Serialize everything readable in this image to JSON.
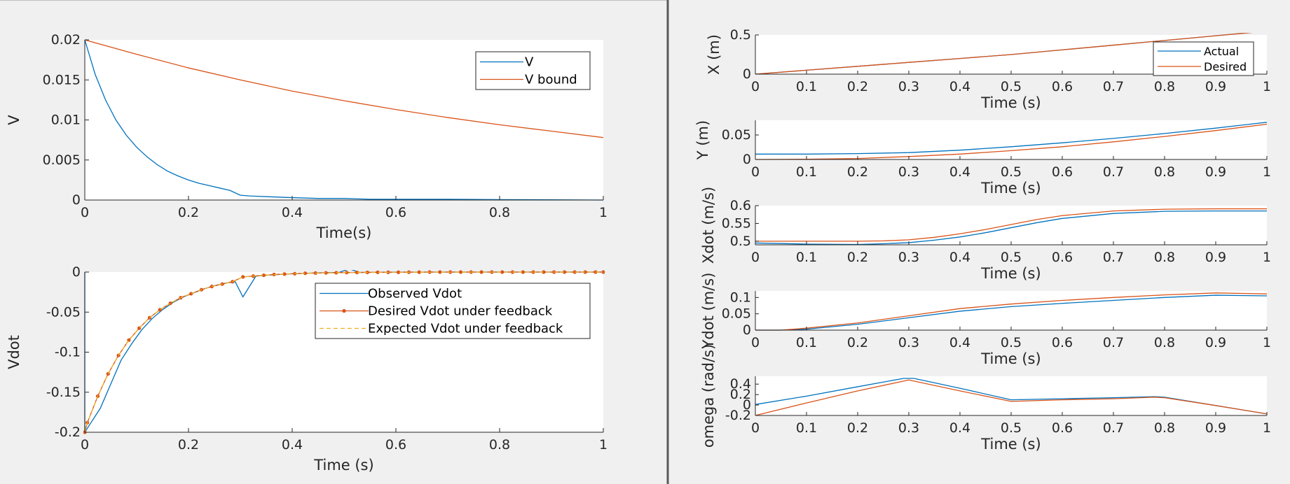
{
  "colors": {
    "blue": "#0072bd",
    "orange": "#d95319",
    "yellow": "#edb120",
    "plot_bg": "#ffffff",
    "figure_bg": "#f0f0f0",
    "axis": "#262626",
    "divider": "#5a5a5a"
  },
  "chart_data": [
    {
      "id": "v",
      "type": "line",
      "xlabel": "Time(s)",
      "ylabel": "V",
      "xlim": [
        0,
        1
      ],
      "ylim": [
        0,
        0.02
      ],
      "xticks": [
        0,
        0.2,
        0.4,
        0.6,
        0.8,
        1
      ],
      "xticklabels": [
        "0",
        "0.2",
        "0.4",
        "0.6",
        "0.8",
        "1"
      ],
      "yticks": [
        0,
        0.005,
        0.01,
        0.015,
        0.02
      ],
      "yticklabels": [
        "0",
        "0.005",
        "0.01",
        "0.015",
        "0.02"
      ],
      "legend_position": "top-right",
      "series": [
        {
          "name": "V",
          "color": "#0072bd",
          "marker": "none",
          "style": "solid",
          "x": [
            0,
            0.02,
            0.04,
            0.06,
            0.08,
            0.1,
            0.12,
            0.14,
            0.16,
            0.18,
            0.2,
            0.22,
            0.24,
            0.26,
            0.28,
            0.3,
            0.32,
            0.36,
            0.4,
            0.45,
            0.5,
            0.55,
            0.6,
            0.7,
            0.8,
            0.9,
            1.0
          ],
          "y": [
            0.02,
            0.0157,
            0.0125,
            0.01,
            0.0081,
            0.0066,
            0.0054,
            0.0044,
            0.0036,
            0.003,
            0.0025,
            0.0021,
            0.0018,
            0.0015,
            0.0012,
            0.0006,
            0.0005,
            0.0004,
            0.0003,
            0.0002,
            0.0002,
            0.0001,
            0.0001,
            0.0001,
            5e-05,
            3e-05,
            0.0
          ]
        },
        {
          "name": "V bound",
          "color": "#d95319",
          "marker": "none",
          "style": "solid",
          "x": [
            0,
            0.1,
            0.2,
            0.3,
            0.4,
            0.5,
            0.6,
            0.7,
            0.8,
            0.9,
            1.0
          ],
          "y": [
            0.02,
            0.0182,
            0.0165,
            0.015,
            0.0136,
            0.0124,
            0.0113,
            0.0103,
            0.0094,
            0.0086,
            0.0078
          ]
        }
      ]
    },
    {
      "id": "vdot",
      "type": "line",
      "xlabel": "Time (s)",
      "ylabel": "Vdot",
      "xlim": [
        0,
        1
      ],
      "ylim": [
        -0.2,
        0
      ],
      "xticks": [
        0,
        0.2,
        0.4,
        0.6,
        0.8,
        1
      ],
      "xticklabels": [
        "0",
        "0.2",
        "0.4",
        "0.6",
        "0.8",
        "1"
      ],
      "yticks": [
        -0.2,
        -0.15,
        -0.1,
        -0.05,
        0
      ],
      "yticklabels": [
        "-0.2",
        "-0.15",
        "-0.1",
        "-0.05",
        "0"
      ],
      "legend_position": "top-right",
      "series": [
        {
          "name": "Observed Vdot",
          "color": "#0072bd",
          "marker": "none",
          "style": "solid",
          "x": [
            0,
            0.0,
            0.01,
            0.03,
            0.05,
            0.07,
            0.09,
            0.11,
            0.13,
            0.15,
            0.17,
            0.19,
            0.21,
            0.23,
            0.25,
            0.27,
            0.29,
            0.305,
            0.33,
            0.35,
            0.4,
            0.45,
            0.49,
            0.51,
            0.53,
            0.6,
            0.7,
            0.8,
            0.9,
            1.0
          ],
          "y": [
            0.0,
            -0.2,
            -0.19,
            -0.17,
            -0.14,
            -0.11,
            -0.09,
            -0.072,
            -0.058,
            -0.047,
            -0.038,
            -0.031,
            -0.026,
            -0.021,
            -0.017,
            -0.014,
            -0.012,
            -0.031,
            -0.005,
            -0.004,
            -0.002,
            -0.001,
            -0.0005,
            0.004,
            -0.0005,
            0.0,
            0.0,
            0.0,
            0.0,
            0.0
          ]
        },
        {
          "name": "Desired Vdot under feedback",
          "color": "#d95319",
          "marker": "dot",
          "style": "solid",
          "x": [
            0,
            0.005,
            0.025,
            0.045,
            0.065,
            0.085,
            0.105,
            0.125,
            0.145,
            0.165,
            0.185,
            0.205,
            0.225,
            0.245,
            0.265,
            0.285,
            0.305,
            0.325,
            0.345,
            0.365,
            0.385,
            0.405,
            0.425,
            0.445,
            0.465,
            0.485,
            0.505,
            0.525,
            0.545,
            0.565,
            0.585,
            0.605,
            0.625,
            0.645,
            0.665,
            0.685,
            0.705,
            0.725,
            0.745,
            0.765,
            0.785,
            0.805,
            0.825,
            0.845,
            0.865,
            0.885,
            0.905,
            0.925,
            0.945,
            0.965,
            0.985,
            1.0
          ],
          "y": [
            -0.2,
            -0.188,
            -0.155,
            -0.127,
            -0.104,
            -0.085,
            -0.07,
            -0.057,
            -0.047,
            -0.039,
            -0.032,
            -0.027,
            -0.022,
            -0.018,
            -0.015,
            -0.012,
            -0.006,
            -0.005,
            -0.004,
            -0.003,
            -0.0025,
            -0.002,
            -0.0015,
            -0.0012,
            -0.001,
            -0.0008,
            -0.0006,
            -0.0005,
            -0.0004,
            -0.0003,
            -0.0002,
            -0.0002,
            -0.0001,
            -0.0001,
            0.0,
            0.0,
            0.0,
            0.0,
            0.0,
            0.0,
            0.0,
            0.0,
            0.0,
            0.0,
            0.0,
            0.0,
            0.0,
            0.0,
            0.0,
            0.0,
            0.0,
            0.0
          ]
        },
        {
          "name": "Expected Vdot under feedback",
          "color": "#edb120",
          "marker": "none",
          "style": "dashed",
          "x": [
            0,
            0.005,
            0.025,
            0.045,
            0.065,
            0.085,
            0.105,
            0.125,
            0.145,
            0.165,
            0.185,
            0.205,
            0.225,
            0.245,
            0.265,
            0.285,
            0.305,
            0.345,
            0.4,
            0.5,
            0.6,
            0.8,
            1.0
          ],
          "y": [
            -0.2,
            -0.188,
            -0.155,
            -0.127,
            -0.104,
            -0.085,
            -0.07,
            -0.057,
            -0.047,
            -0.039,
            -0.032,
            -0.027,
            -0.022,
            -0.018,
            -0.015,
            -0.012,
            -0.006,
            -0.004,
            -0.002,
            -0.0006,
            -0.0002,
            0.0,
            0.0
          ]
        }
      ]
    },
    {
      "id": "x",
      "type": "line",
      "xlabel": "Time (s)",
      "ylabel": "X (m)",
      "xlim": [
        0,
        1
      ],
      "ylim": [
        0,
        0.5
      ],
      "xticks": [
        0,
        0.1,
        0.2,
        0.3,
        0.4,
        0.5,
        0.6,
        0.7,
        0.8,
        0.9,
        1
      ],
      "xticklabels": [
        "0",
        "0.1",
        "0.2",
        "0.3",
        "0.4",
        "0.5",
        "0.6",
        "0.7",
        "0.8",
        "0.9",
        "1"
      ],
      "yticks": [
        0,
        0.5
      ],
      "yticklabels": [
        "0",
        "0.5"
      ],
      "legend_position": "top-right",
      "series": [
        {
          "name": "Actual",
          "color": "#0072bd",
          "x": [
            0,
            0.1,
            0.2,
            0.3,
            0.4,
            0.5,
            0.6,
            0.7,
            0.8,
            0.9,
            1.0
          ],
          "y": [
            0.0,
            0.05,
            0.1,
            0.15,
            0.2,
            0.25,
            0.31,
            0.37,
            0.43,
            0.49,
            0.55
          ]
        },
        {
          "name": "Desired",
          "color": "#d95319",
          "x": [
            0,
            0.1,
            0.2,
            0.3,
            0.4,
            0.5,
            0.6,
            0.7,
            0.8,
            0.9,
            1.0
          ],
          "y": [
            0.0,
            0.05,
            0.1,
            0.15,
            0.2,
            0.25,
            0.31,
            0.37,
            0.43,
            0.49,
            0.55
          ]
        }
      ]
    },
    {
      "id": "y",
      "type": "line",
      "xlabel": "Time (s)",
      "ylabel": "Y (m)",
      "xlim": [
        0,
        1
      ],
      "ylim": [
        0,
        0.08
      ],
      "xticks": [
        0,
        0.1,
        0.2,
        0.3,
        0.4,
        0.5,
        0.6,
        0.7,
        0.8,
        0.9,
        1
      ],
      "xticklabels": [
        "0",
        "0.1",
        "0.2",
        "0.3",
        "0.4",
        "0.5",
        "0.6",
        "0.7",
        "0.8",
        "0.9",
        "1"
      ],
      "yticks": [
        0,
        0.05
      ],
      "yticklabels": [
        "0",
        "0.05"
      ],
      "series": [
        {
          "name": "Actual",
          "color": "#0072bd",
          "x": [
            0,
            0.1,
            0.2,
            0.3,
            0.4,
            0.5,
            0.6,
            0.7,
            0.8,
            0.9,
            1.0
          ],
          "y": [
            0.011,
            0.011,
            0.012,
            0.014,
            0.019,
            0.026,
            0.034,
            0.043,
            0.053,
            0.064,
            0.076
          ]
        },
        {
          "name": "Desired",
          "color": "#d95319",
          "x": [
            0,
            0.1,
            0.2,
            0.3,
            0.4,
            0.5,
            0.6,
            0.7,
            0.8,
            0.9,
            1.0
          ],
          "y": [
            0.0,
            0.0005,
            0.002,
            0.006,
            0.011,
            0.018,
            0.026,
            0.036,
            0.047,
            0.059,
            0.072
          ]
        }
      ]
    },
    {
      "id": "xdot",
      "type": "line",
      "xlabel": "Time (s)",
      "ylabel": "Xdot (m/s)",
      "xlim": [
        0,
        1
      ],
      "ylim": [
        0.49,
        0.6
      ],
      "xticks": [
        0,
        0.1,
        0.2,
        0.3,
        0.4,
        0.5,
        0.6,
        0.7,
        0.8,
        0.9,
        1
      ],
      "xticklabels": [
        "0",
        "0.1",
        "0.2",
        "0.3",
        "0.4",
        "0.5",
        "0.6",
        "0.7",
        "0.8",
        "0.9",
        "1"
      ],
      "yticks": [
        0.5,
        0.55,
        0.6
      ],
      "yticklabels": [
        "0.5",
        "0.55",
        "0.6"
      ],
      "series": [
        {
          "name": "Actual",
          "color": "#0072bd",
          "x": [
            0,
            0.1,
            0.2,
            0.25,
            0.3,
            0.35,
            0.4,
            0.45,
            0.5,
            0.55,
            0.6,
            0.7,
            0.8,
            0.9,
            1.0
          ],
          "y": [
            0.495,
            0.492,
            0.491,
            0.493,
            0.496,
            0.503,
            0.512,
            0.524,
            0.538,
            0.552,
            0.564,
            0.578,
            0.584,
            0.585,
            0.585
          ]
        },
        {
          "name": "Desired",
          "color": "#d95319",
          "x": [
            0,
            0.1,
            0.2,
            0.25,
            0.3,
            0.35,
            0.4,
            0.45,
            0.5,
            0.55,
            0.6,
            0.7,
            0.8,
            0.9,
            1.0
          ],
          "y": [
            0.5,
            0.5,
            0.5,
            0.501,
            0.504,
            0.511,
            0.521,
            0.533,
            0.547,
            0.561,
            0.572,
            0.585,
            0.59,
            0.591,
            0.591
          ]
        }
      ]
    },
    {
      "id": "ydot",
      "type": "line",
      "xlabel": "Time (s)",
      "ylabel": "Ydot (m/s)",
      "xlim": [
        0,
        1
      ],
      "ylim": [
        0,
        0.12
      ],
      "xticks": [
        0,
        0.1,
        0.2,
        0.3,
        0.4,
        0.5,
        0.6,
        0.7,
        0.8,
        0.9,
        1
      ],
      "xticklabels": [
        "0",
        "0.1",
        "0.2",
        "0.3",
        "0.4",
        "0.5",
        "0.6",
        "0.7",
        "0.8",
        "0.9",
        "1"
      ],
      "yticks": [
        0,
        0.05,
        0.1
      ],
      "yticklabels": [
        "0",
        "0.05",
        "0.1"
      ],
      "series": [
        {
          "name": "Actual",
          "color": "#0072bd",
          "x": [
            0,
            0.05,
            0.1,
            0.2,
            0.3,
            0.4,
            0.5,
            0.6,
            0.7,
            0.8,
            0.9,
            1.0
          ],
          "y": [
            0.0,
            0.0,
            0.003,
            0.018,
            0.038,
            0.058,
            0.072,
            0.082,
            0.091,
            0.1,
            0.107,
            0.105
          ]
        },
        {
          "name": "Desired",
          "color": "#d95319",
          "x": [
            0,
            0.05,
            0.1,
            0.2,
            0.3,
            0.4,
            0.5,
            0.6,
            0.7,
            0.8,
            0.9,
            1.0
          ],
          "y": [
            0.0,
            0.0,
            0.006,
            0.022,
            0.044,
            0.066,
            0.08,
            0.091,
            0.1,
            0.108,
            0.114,
            0.111
          ]
        }
      ]
    },
    {
      "id": "omega",
      "type": "line",
      "xlabel": "Time (s)",
      "ylabel": "omega (rad/s)",
      "xlim": [
        0,
        1
      ],
      "ylim": [
        -0.2,
        0.55
      ],
      "xticks": [
        0,
        0.1,
        0.2,
        0.3,
        0.4,
        0.5,
        0.6,
        0.7,
        0.8,
        0.9,
        1
      ],
      "xticklabels": [
        "0",
        "0.1",
        "0.2",
        "0.3",
        "0.4",
        "0.5",
        "0.6",
        "0.7",
        "0.8",
        "0.9",
        "1"
      ],
      "yticks": [
        -0.2,
        0,
        0.2,
        0.4
      ],
      "yticklabels": [
        "-0.2",
        "0",
        "0.2",
        "0.4"
      ],
      "series": [
        {
          "name": "Actual",
          "color": "#0072bd",
          "x": [
            0,
            0.1,
            0.2,
            0.29,
            0.31,
            0.4,
            0.5,
            0.6,
            0.7,
            0.78,
            0.8,
            0.9,
            1.0
          ],
          "y": [
            0.01,
            0.17,
            0.35,
            0.51,
            0.51,
            0.32,
            0.1,
            0.12,
            0.14,
            0.16,
            0.15,
            -0.01,
            -0.17
          ]
        },
        {
          "name": "Desired",
          "color": "#d95319",
          "x": [
            0,
            0.1,
            0.2,
            0.3,
            0.4,
            0.5,
            0.6,
            0.7,
            0.78,
            0.8,
            0.9,
            1.0
          ],
          "y": [
            -0.2,
            0.04,
            0.27,
            0.48,
            0.27,
            0.07,
            0.1,
            0.12,
            0.15,
            0.14,
            -0.01,
            -0.17
          ]
        }
      ]
    }
  ]
}
